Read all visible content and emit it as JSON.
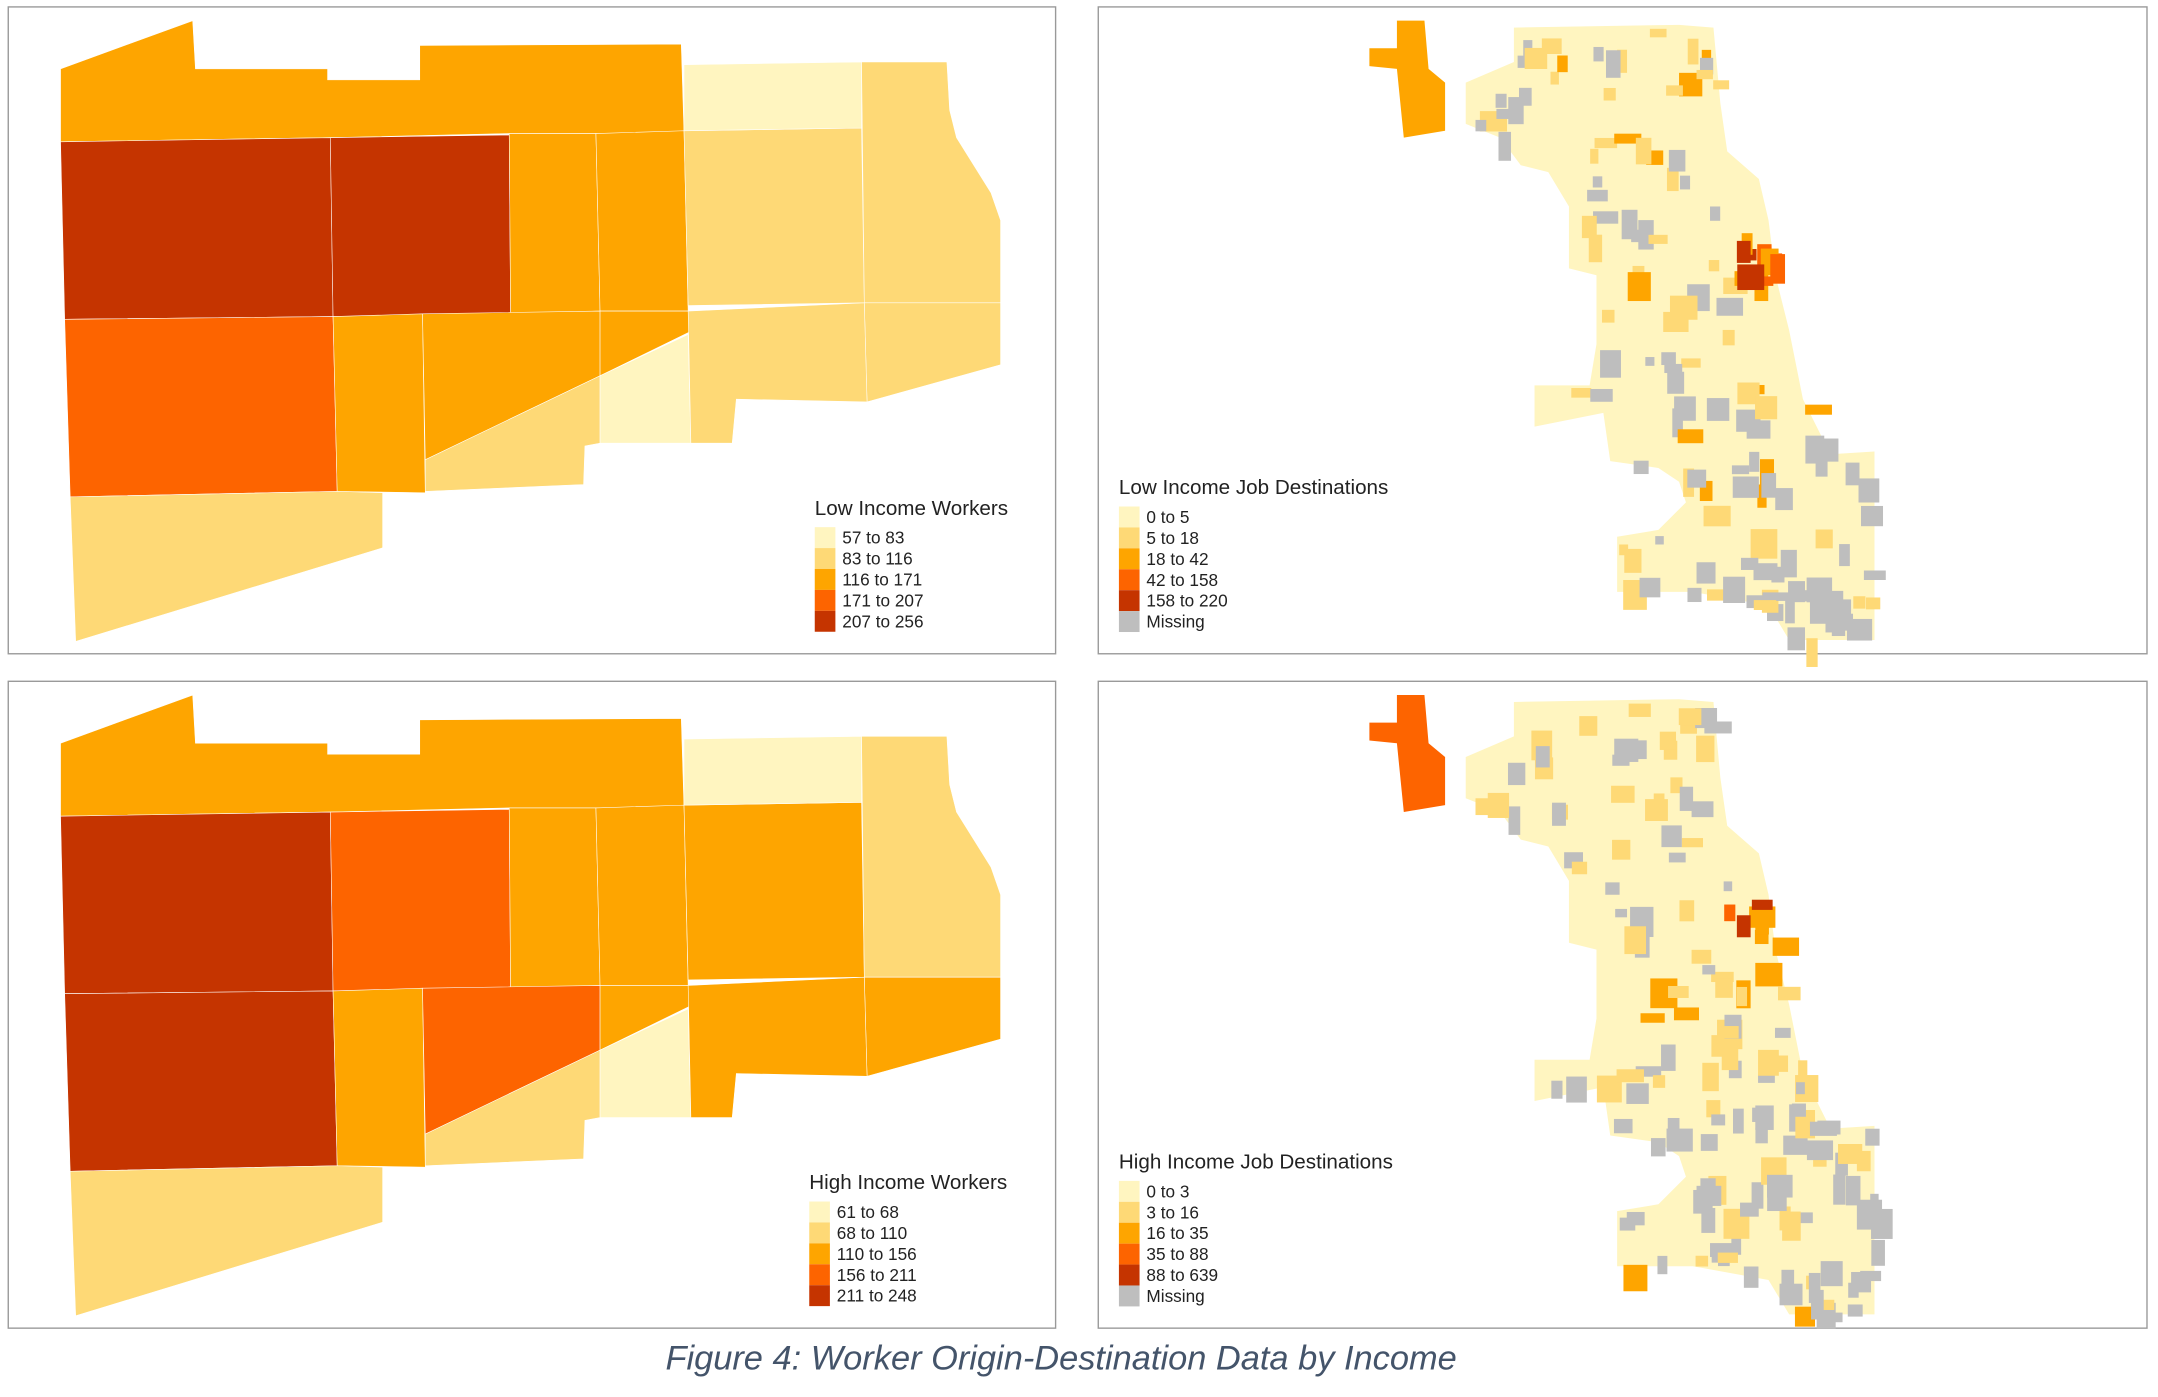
{
  "caption": "Figure 4: Worker Origin-Destination Data by Income",
  "colors": [
    "#FFF5C0",
    "#FED976",
    "#FEA500",
    "#FD6400",
    "#C53400",
    "#BEBEBE"
  ],
  "panels": [
    {
      "title": "Low Income Workers",
      "legend": [
        "57 to 83",
        "83 to 116",
        "116 to 171",
        "171 to 207",
        "207 to 256"
      ],
      "region_classes": [
        2,
        4,
        4,
        2,
        2,
        1,
        0,
        1,
        1,
        3,
        2,
        2,
        2,
        1,
        0,
        1,
        1
      ]
    },
    {
      "title": "Low Income Job Destinations",
      "legend": [
        "0 to 5",
        "5 to 18",
        "18 to 42",
        "42 to 158",
        "158 to 220",
        "Missing"
      ],
      "ohare_class": 2
    },
    {
      "title": "High Income Workers",
      "legend": [
        "61 to 68",
        "68 to 110",
        "110 to 156",
        "156 to 211",
        "211 to 248"
      ],
      "region_classes": [
        2,
        4,
        3,
        2,
        2,
        2,
        0,
        1,
        2,
        4,
        2,
        3,
        2,
        1,
        0,
        2,
        1
      ]
    },
    {
      "title": "High Income Job Destinations",
      "legend": [
        "0 to 3",
        "3 to 16",
        "16 to 35",
        "35 to 88",
        "88 to 639",
        "Missing"
      ],
      "ohare_class": 3
    }
  ]
}
